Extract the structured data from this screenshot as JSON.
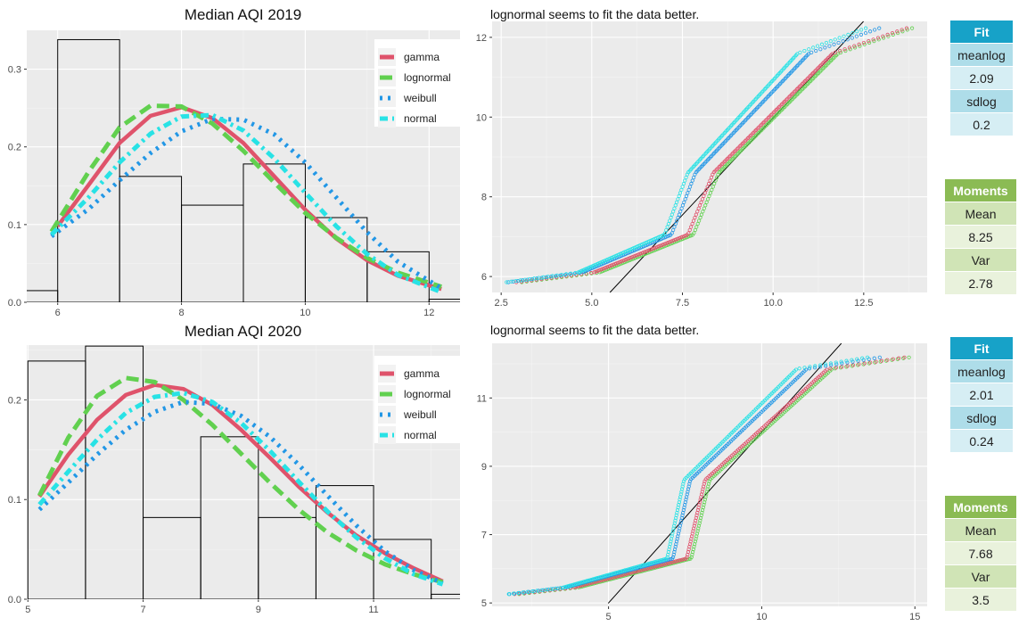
{
  "colors": {
    "gamma": "#df536b",
    "lognormal": "#61d04f",
    "weibull": "#2297e6",
    "normal": "#28e2e5",
    "panel_bg": "#ebebeb",
    "grid": "#ffffff",
    "fit_header": "#17a2c8",
    "fit_label": "#aedde9",
    "fit_value": "#d6eef4",
    "moments_header": "#8bbb54",
    "moments_label": "#d0e4b6",
    "moments_value": "#e9f2dc"
  },
  "legend": [
    "gamma",
    "lognormal",
    "weibull",
    "normal"
  ],
  "qq_titles": [
    "lognormal seems to fit the data better.",
    "lognormal seems to fit the data better."
  ],
  "tables": [
    {
      "fit_header": "Fit",
      "meanlog_label": "meanlog",
      "meanlog": "2.09",
      "sdlog_label": "sdlog",
      "sdlog": "0.2",
      "moments_header": "Moments",
      "mean_label": "Mean",
      "mean": "8.25",
      "var_label": "Var",
      "var": "2.78"
    },
    {
      "fit_header": "Fit",
      "meanlog_label": "meanlog",
      "meanlog": "2.01",
      "sdlog_label": "sdlog",
      "sdlog": "0.24",
      "moments_header": "Moments",
      "mean_label": "Mean",
      "mean": "7.68",
      "var_label": "Var",
      "var": "3.5"
    }
  ],
  "chart_data": [
    {
      "type": "bar",
      "title": "Median AQI 2019",
      "xlabel": "",
      "ylabel": "",
      "xlim": [
        5.5,
        12.5
      ],
      "ylim": [
        0,
        0.35
      ],
      "xticks": [
        6,
        8,
        10,
        12
      ],
      "yticks": [
        0.0,
        0.1,
        0.2,
        0.3
      ],
      "histogram": {
        "edges": [
          5,
          6,
          7,
          8,
          9,
          10,
          11,
          12,
          13
        ],
        "density": [
          0.015,
          0.338,
          0.162,
          0.125,
          0.178,
          0.109,
          0.065,
          0.004
        ]
      },
      "series": [
        {
          "name": "gamma",
          "x": [
            6.0,
            6.5,
            7.0,
            7.5,
            8.0,
            8.5,
            9.0,
            9.5,
            10.0,
            10.5,
            11.0,
            11.5,
            12.2
          ],
          "values": [
            0.098,
            0.151,
            0.205,
            0.24,
            0.251,
            0.237,
            0.205,
            0.162,
            0.119,
            0.082,
            0.054,
            0.034,
            0.017
          ]
        },
        {
          "name": "lognormal",
          "x": [
            5.9,
            6.5,
            7.0,
            7.5,
            8.0,
            8.5,
            9.0,
            9.5,
            10.0,
            10.5,
            11.0,
            11.5,
            12.2
          ],
          "values": [
            0.091,
            0.168,
            0.225,
            0.253,
            0.252,
            0.23,
            0.195,
            0.154,
            0.115,
            0.083,
            0.057,
            0.038,
            0.02
          ]
        },
        {
          "name": "weibull",
          "x": [
            5.9,
            6.5,
            7.0,
            7.5,
            8.0,
            8.5,
            9.0,
            9.5,
            10.0,
            10.5,
            11.0,
            11.5,
            12.2
          ],
          "values": [
            0.085,
            0.12,
            0.157,
            0.192,
            0.22,
            0.236,
            0.235,
            0.216,
            0.18,
            0.135,
            0.09,
            0.052,
            0.018
          ]
        },
        {
          "name": "normal",
          "x": [
            5.9,
            6.5,
            7.0,
            7.5,
            8.0,
            8.5,
            9.0,
            9.5,
            10.0,
            10.5,
            11.0,
            11.5,
            12.2
          ],
          "values": [
            0.087,
            0.135,
            0.18,
            0.217,
            0.239,
            0.241,
            0.221,
            0.185,
            0.141,
            0.098,
            0.062,
            0.035,
            0.013
          ]
        }
      ]
    },
    {
      "type": "scatter",
      "title": "lognormal seems to fit the data better.",
      "xlabel": "",
      "ylabel": "",
      "xlim": [
        2.25,
        14.25
      ],
      "ylim": [
        5.6,
        12.4
      ],
      "xticks": [
        2.5,
        5.0,
        7.5,
        10.0,
        12.5
      ],
      "yticks": [
        6,
        8,
        10,
        12
      ],
      "reference_line": {
        "x": [
          5.5,
          12.7
        ],
        "y": [
          5.6,
          12.6
        ]
      }
    },
    {
      "type": "bar",
      "title": "Median AQI 2020",
      "xlabel": "",
      "ylabel": "",
      "xlim": [
        4.98,
        12.5
      ],
      "ylim": [
        0,
        0.255
      ],
      "xticks": [
        5,
        7,
        9,
        11
      ],
      "yticks": [
        0.0,
        0.1,
        0.2
      ],
      "histogram": {
        "edges": [
          5,
          6,
          7,
          8,
          9,
          10,
          11,
          12,
          13
        ],
        "density": [
          0.239,
          0.254,
          0.082,
          0.163,
          0.082,
          0.114,
          0.06,
          0.005
        ]
      },
      "series": [
        {
          "name": "gamma",
          "x": [
            5.2,
            5.7,
            6.2,
            6.7,
            7.2,
            7.7,
            8.2,
            8.7,
            9.2,
            9.7,
            10.2,
            10.7,
            11.2,
            11.7,
            12.2
          ],
          "values": [
            0.103,
            0.145,
            0.18,
            0.205,
            0.215,
            0.211,
            0.195,
            0.17,
            0.142,
            0.113,
            0.087,
            0.064,
            0.046,
            0.031,
            0.018
          ]
        },
        {
          "name": "lognormal",
          "x": [
            5.2,
            5.7,
            6.2,
            6.7,
            7.2,
            7.7,
            8.2,
            8.7,
            9.2,
            9.7,
            10.2,
            10.7,
            11.2,
            11.7,
            12.2
          ],
          "values": [
            0.104,
            0.162,
            0.204,
            0.222,
            0.218,
            0.2,
            0.175,
            0.146,
            0.117,
            0.09,
            0.067,
            0.049,
            0.035,
            0.025,
            0.017
          ]
        },
        {
          "name": "weibull",
          "x": [
            5.2,
            5.7,
            6.2,
            6.7,
            7.2,
            7.7,
            8.2,
            8.7,
            9.2,
            9.7,
            10.2,
            10.7,
            11.2,
            11.7,
            12.2
          ],
          "values": [
            0.09,
            0.117,
            0.145,
            0.17,
            0.188,
            0.198,
            0.196,
            0.184,
            0.163,
            0.135,
            0.104,
            0.074,
            0.048,
            0.029,
            0.016
          ]
        },
        {
          "name": "normal",
          "x": [
            5.2,
            5.7,
            6.2,
            6.7,
            7.2,
            7.7,
            8.2,
            8.7,
            9.2,
            9.7,
            10.2,
            10.7,
            11.2,
            11.7,
            12.2
          ],
          "values": [
            0.095,
            0.128,
            0.16,
            0.187,
            0.203,
            0.207,
            0.198,
            0.177,
            0.149,
            0.118,
            0.088,
            0.062,
            0.041,
            0.025,
            0.015
          ]
        }
      ]
    },
    {
      "type": "scatter",
      "title": "lognormal seems to fit the data better.",
      "xlabel": "",
      "ylabel": "",
      "xlim": [
        1.2,
        15.4
      ],
      "ylim": [
        4.9,
        12.6
      ],
      "xticks": [
        5,
        10,
        15
      ],
      "yticks": [
        5,
        7,
        9,
        11
      ],
      "reference_line": {
        "x": [
          4.99,
          12.6
        ],
        "y": [
          4.99,
          12.6
        ]
      }
    }
  ]
}
